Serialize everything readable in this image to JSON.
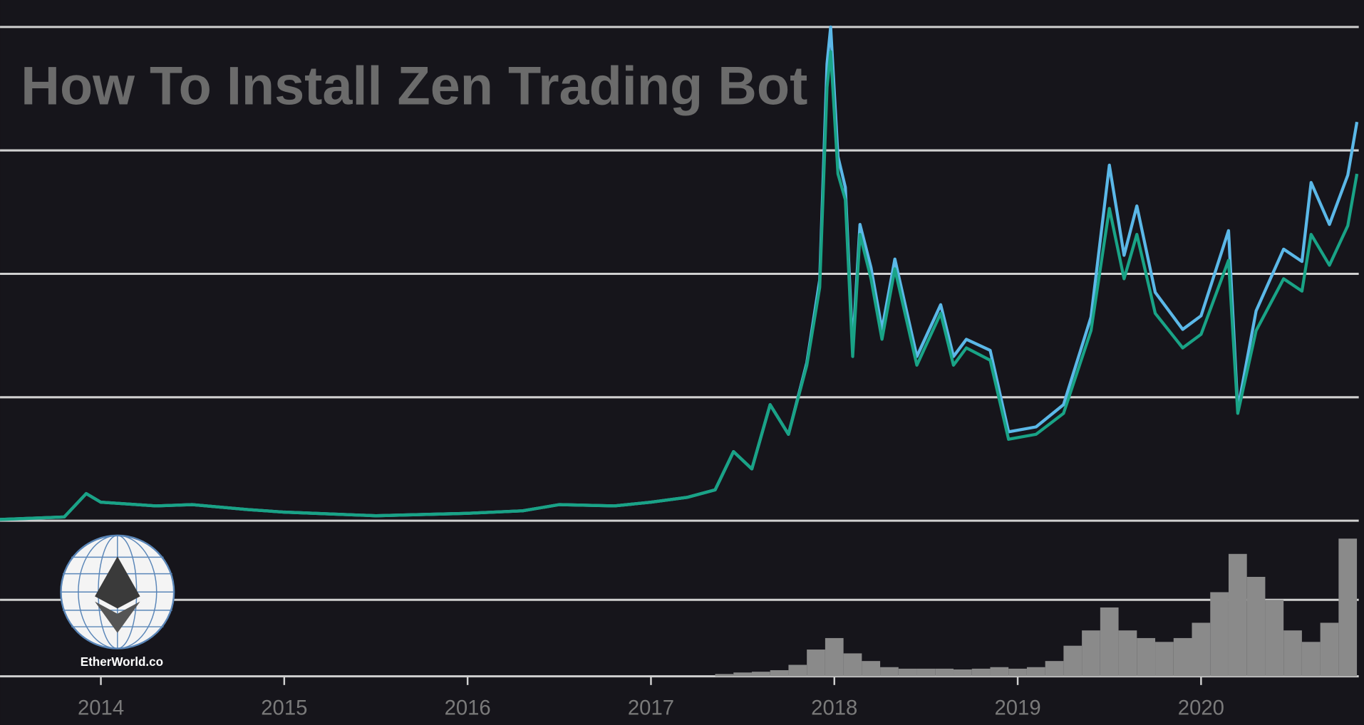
{
  "logo_text": "EtherWorld.co",
  "chart_data": [
    {
      "type": "line",
      "title": "How To Install Zen Trading Bot",
      "x": [
        2013.45,
        2013.8,
        2013.92,
        2014.0,
        2014.3,
        2014.5,
        2014.8,
        2015.0,
        2015.5,
        2016.0,
        2016.3,
        2016.5,
        2016.8,
        2017.0,
        2017.2,
        2017.35,
        2017.45,
        2017.55,
        2017.65,
        2017.75,
        2017.85,
        2017.92,
        2017.96,
        2017.98,
        2018.02,
        2018.06,
        2018.1,
        2018.14,
        2018.2,
        2018.26,
        2018.33,
        2018.45,
        2018.58,
        2018.65,
        2018.72,
        2018.85,
        2018.95,
        2019.1,
        2019.25,
        2019.4,
        2019.5,
        2019.58,
        2019.65,
        2019.75,
        2019.9,
        2020.0,
        2020.15,
        2020.2,
        2020.3,
        2020.45,
        2020.55,
        2020.6,
        2020.7,
        2020.8,
        2020.85
      ],
      "series": [
        {
          "color": "#5bb8e8",
          "values": [
            0.01,
            0.03,
            0.22,
            0.15,
            0.12,
            0.13,
            0.09,
            0.07,
            0.04,
            0.06,
            0.08,
            0.13,
            0.12,
            0.15,
            0.19,
            0.25,
            0.56,
            0.42,
            0.94,
            0.7,
            1.28,
            1.95,
            3.7,
            4.0,
            2.95,
            2.7,
            1.4,
            2.4,
            2.05,
            1.55,
            2.12,
            1.33,
            1.75,
            1.33,
            1.47,
            1.38,
            0.72,
            0.76,
            0.94,
            1.65,
            2.88,
            2.15,
            2.55,
            1.85,
            1.55,
            1.66,
            2.35,
            0.9,
            1.7,
            2.2,
            2.1,
            2.74,
            2.4,
            2.8,
            3.23
          ]
        },
        {
          "color": "#19a386",
          "values": [
            0.01,
            0.03,
            0.22,
            0.15,
            0.12,
            0.13,
            0.09,
            0.07,
            0.04,
            0.06,
            0.08,
            0.13,
            0.12,
            0.15,
            0.19,
            0.25,
            0.56,
            0.42,
            0.94,
            0.7,
            1.26,
            1.89,
            3.51,
            3.8,
            2.81,
            2.6,
            1.33,
            2.32,
            1.96,
            1.47,
            2.04,
            1.26,
            1.68,
            1.26,
            1.4,
            1.3,
            0.66,
            0.7,
            0.87,
            1.54,
            2.53,
            1.96,
            2.32,
            1.68,
            1.4,
            1.51,
            2.11,
            0.87,
            1.54,
            1.96,
            1.86,
            2.32,
            2.07,
            2.39,
            2.81
          ]
        }
      ],
      "xlim": [
        2013.45,
        2020.86
      ],
      "ylim": [
        0,
        4
      ],
      "yticks": [
        0,
        1,
        2,
        3,
        4
      ],
      "grid": true
    },
    {
      "type": "bar",
      "color": "#8a8a8a",
      "x": [
        2017.4,
        2017.5,
        2017.6,
        2017.7,
        2017.8,
        2017.9,
        2018.0,
        2018.1,
        2018.2,
        2018.3,
        2018.4,
        2018.5,
        2018.6,
        2018.7,
        2018.8,
        2018.9,
        2019.0,
        2019.1,
        2019.2,
        2019.3,
        2019.4,
        2019.5,
        2019.6,
        2019.7,
        2019.8,
        2019.9,
        2020.0,
        2020.1,
        2020.2,
        2020.3,
        2020.4,
        2020.5,
        2020.6,
        2020.7,
        2020.8
      ],
      "values": [
        0.03,
        0.05,
        0.06,
        0.08,
        0.15,
        0.35,
        0.5,
        0.3,
        0.2,
        0.12,
        0.1,
        0.1,
        0.1,
        0.09,
        0.1,
        0.12,
        0.1,
        0.12,
        0.2,
        0.4,
        0.6,
        0.9,
        0.6,
        0.5,
        0.45,
        0.5,
        0.7,
        1.1,
        1.6,
        1.3,
        1.0,
        0.6,
        0.45,
        0.7,
        1.8
      ],
      "xlim": [
        2013.45,
        2020.86
      ],
      "xticks": [
        2014,
        2015,
        2016,
        2017,
        2018,
        2019,
        2020
      ],
      "ylim": [
        0,
        2
      ],
      "yticks": [
        0,
        1
      ],
      "grid": true
    }
  ]
}
